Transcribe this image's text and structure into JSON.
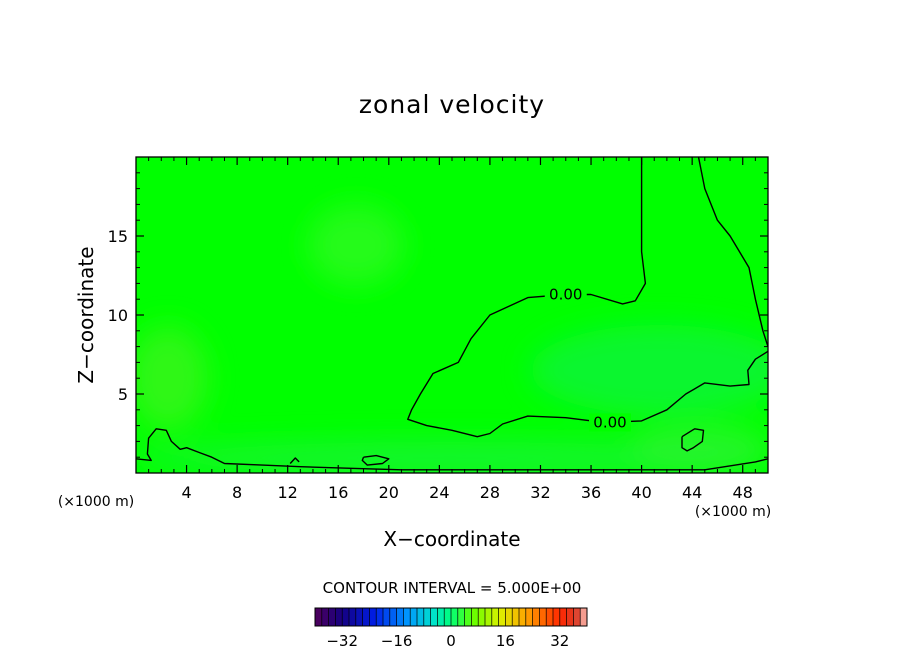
{
  "chart_data": {
    "type": "heatmap",
    "title": "zonal velocity",
    "xlabel": "X−coordinate",
    "ylabel": "Z−coordinate",
    "x_unit": "(×1000 m)",
    "z_unit": "(×1000 m)",
    "xlim": [
      0,
      50
    ],
    "ylim": [
      0,
      20
    ],
    "x_ticks": [
      4,
      8,
      12,
      16,
      20,
      24,
      28,
      32,
      36,
      40,
      44,
      48
    ],
    "y_ticks": [
      5,
      10,
      15
    ],
    "x_tick_labels": [
      "4",
      "8",
      "12",
      "16",
      "20",
      "24",
      "28",
      "32",
      "36",
      "40",
      "44",
      "48"
    ],
    "y_tick_labels": [
      "5",
      "10",
      "15"
    ],
    "contour_interval_text": "CONTOUR INTERVAL = 5.000E+00",
    "contour_labels": [
      {
        "text": "0.00",
        "x": 34,
        "z": 11.3
      },
      {
        "text": "0.00",
        "x": 37.5,
        "z": 3.2
      }
    ],
    "zero_contours": [
      {
        "points": [
          [
            40,
            20
          ],
          [
            40,
            14
          ],
          [
            40.3,
            12
          ],
          [
            39.5,
            10.9
          ],
          [
            38.5,
            10.7
          ],
          [
            36,
            11.3
          ],
          [
            34,
            11.3
          ],
          [
            31,
            11.1
          ],
          [
            28,
            10
          ],
          [
            26.5,
            8.5
          ],
          [
            25.5,
            7
          ],
          [
            23.5,
            6.3
          ],
          [
            22.5,
            5
          ],
          [
            21.8,
            4
          ],
          [
            21.5,
            3.4
          ],
          [
            23,
            3
          ],
          [
            25,
            2.7
          ],
          [
            27,
            2.3
          ],
          [
            28,
            2.5
          ],
          [
            29,
            3.1
          ],
          [
            31,
            3.6
          ],
          [
            34,
            3.5
          ],
          [
            37,
            3.2
          ],
          [
            40,
            3.3
          ],
          [
            42,
            4
          ],
          [
            43.5,
            5
          ],
          [
            45,
            5.7
          ],
          [
            47,
            5.5
          ],
          [
            48.5,
            5.6
          ],
          [
            48.4,
            6.5
          ],
          [
            49,
            7.2
          ],
          [
            50,
            7.7
          ]
        ]
      },
      {
        "points": [
          [
            44.5,
            20
          ],
          [
            45,
            18
          ],
          [
            46,
            16
          ],
          [
            47,
            15
          ],
          [
            48.5,
            13
          ],
          [
            49,
            11
          ],
          [
            49.6,
            9
          ],
          [
            50,
            8
          ]
        ]
      },
      {
        "points": [
          [
            0,
            0.9
          ],
          [
            1.2,
            0.8
          ],
          [
            0.9,
            1.2
          ],
          [
            1,
            2.2
          ],
          [
            1.6,
            2.8
          ],
          [
            2.4,
            2.7
          ],
          [
            2.8,
            2
          ],
          [
            3.5,
            1.5
          ],
          [
            4,
            1.6
          ],
          [
            5,
            1.3
          ],
          [
            6,
            1
          ],
          [
            7,
            0.6
          ],
          [
            10,
            0.5
          ],
          [
            13,
            0.4
          ],
          [
            17,
            0.3
          ],
          [
            21,
            0.2
          ],
          [
            24,
            0.2
          ],
          [
            28,
            0.2
          ],
          [
            35,
            0.2
          ],
          [
            45,
            0.2
          ],
          [
            49,
            0.7
          ],
          [
            50,
            0.9
          ]
        ]
      },
      {
        "points": [
          [
            18,
            1
          ],
          [
            19,
            1.1
          ],
          [
            20,
            0.9
          ],
          [
            19.5,
            0.6
          ],
          [
            18.3,
            0.5
          ],
          [
            17.9,
            0.8
          ],
          [
            18,
            1
          ]
        ]
      },
      {
        "points": [
          [
            43.2,
            2.3
          ],
          [
            44.2,
            2.8
          ],
          [
            44.9,
            2.7
          ],
          [
            44.8,
            2
          ],
          [
            44.1,
            1.6
          ],
          [
            43.6,
            1.4
          ],
          [
            43.2,
            1.6
          ],
          [
            43.2,
            2.3
          ]
        ]
      },
      {
        "points": [
          [
            12.2,
            0.6
          ],
          [
            12.6,
            0.95
          ],
          [
            12.9,
            0.7
          ]
        ]
      }
    ],
    "colorbar": {
      "min": -40,
      "max": 40,
      "interval": 2,
      "ticks": [
        -32,
        -16,
        0,
        16,
        32
      ],
      "tick_labels": [
        "−32",
        "−16",
        "0",
        "16",
        "32"
      ]
    },
    "colors": {
      "background_field": "#00ff00",
      "contour": "#000000"
    }
  }
}
